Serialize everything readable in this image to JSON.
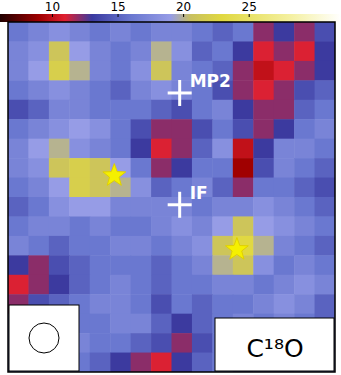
{
  "chart_data": {
    "type": "heatmap",
    "title": "C¹⁸O",
    "xlim": [
      0,
      16
    ],
    "ylim": [
      0,
      18
    ],
    "tick_labels": false,
    "colorbar": {
      "range": [
        6,
        32
      ],
      "ticks": [
        10,
        15,
        20,
        25
      ]
    },
    "cells": [
      [
        16,
        17,
        18,
        17,
        16,
        17,
        16,
        17,
        17,
        16,
        15,
        16,
        12,
        13,
        12,
        14
      ],
      [
        17,
        18,
        21,
        19,
        17,
        16,
        17,
        20,
        18,
        15,
        16,
        13,
        11,
        12,
        11,
        13
      ],
      [
        17,
        19,
        22,
        20,
        17,
        16,
        18,
        21,
        17,
        16,
        15,
        12,
        10,
        11,
        12,
        13
      ],
      [
        16,
        17,
        18,
        17,
        16,
        15,
        17,
        18,
        17,
        16,
        14,
        12,
        11,
        12,
        14,
        15
      ],
      [
        14,
        15,
        17,
        17,
        16,
        16,
        16,
        15,
        14,
        16,
        17,
        13,
        12,
        12,
        15,
        16
      ],
      [
        16,
        17,
        18,
        19,
        18,
        16,
        14,
        12,
        12,
        14,
        16,
        14,
        12,
        13,
        16,
        17
      ],
      [
        17,
        19,
        20,
        18,
        17,
        16,
        13,
        11,
        12,
        15,
        18,
        10,
        13,
        17,
        17,
        16
      ],
      [
        17,
        18,
        21,
        22,
        21,
        19,
        16,
        12,
        13,
        16,
        16,
        9,
        14,
        17,
        16,
        15
      ],
      [
        16,
        17,
        19,
        22,
        21,
        20,
        18,
        15,
        16,
        17,
        15,
        12,
        16,
        16,
        15,
        14
      ],
      [
        15,
        16,
        18,
        19,
        19,
        17,
        17,
        17,
        17,
        16,
        17,
        17,
        18,
        17,
        16,
        15
      ],
      [
        16,
        17,
        17,
        16,
        17,
        16,
        16,
        17,
        18,
        17,
        19,
        21,
        19,
        18,
        17,
        16
      ],
      [
        17,
        16,
        15,
        16,
        16,
        17,
        17,
        16,
        17,
        18,
        21,
        23,
        20,
        17,
        16,
        15
      ],
      [
        13,
        12,
        14,
        15,
        16,
        16,
        16,
        15,
        16,
        17,
        20,
        21,
        18,
        16,
        17,
        16
      ],
      [
        11,
        12,
        13,
        15,
        16,
        17,
        16,
        15,
        16,
        16,
        17,
        17,
        16,
        17,
        18,
        17
      ],
      [
        12,
        14,
        15,
        16,
        17,
        17,
        16,
        14,
        16,
        15,
        16,
        16,
        17,
        18,
        17,
        15
      ],
      [
        16,
        16,
        17,
        16,
        16,
        17,
        17,
        15,
        13,
        15,
        16,
        17,
        16,
        17,
        16,
        15
      ],
      [
        17,
        17,
        16,
        17,
        16,
        16,
        15,
        14,
        12,
        14,
        16,
        16,
        15,
        16,
        16,
        15
      ],
      [
        16,
        17,
        16,
        16,
        15,
        13,
        12,
        11,
        13,
        15,
        16,
        14,
        15,
        15,
        16,
        16
      ]
    ],
    "markers": [
      {
        "label": "MP2",
        "x": 8.4,
        "y": 3.65,
        "marker": "cross"
      },
      {
        "label": "IF",
        "x": 8.4,
        "y": 9.4,
        "marker": "cross"
      },
      {
        "x": 5.2,
        "y": 7.9,
        "marker": "star"
      },
      {
        "x": 11.2,
        "y": 11.7,
        "marker": "star"
      }
    ]
  }
}
